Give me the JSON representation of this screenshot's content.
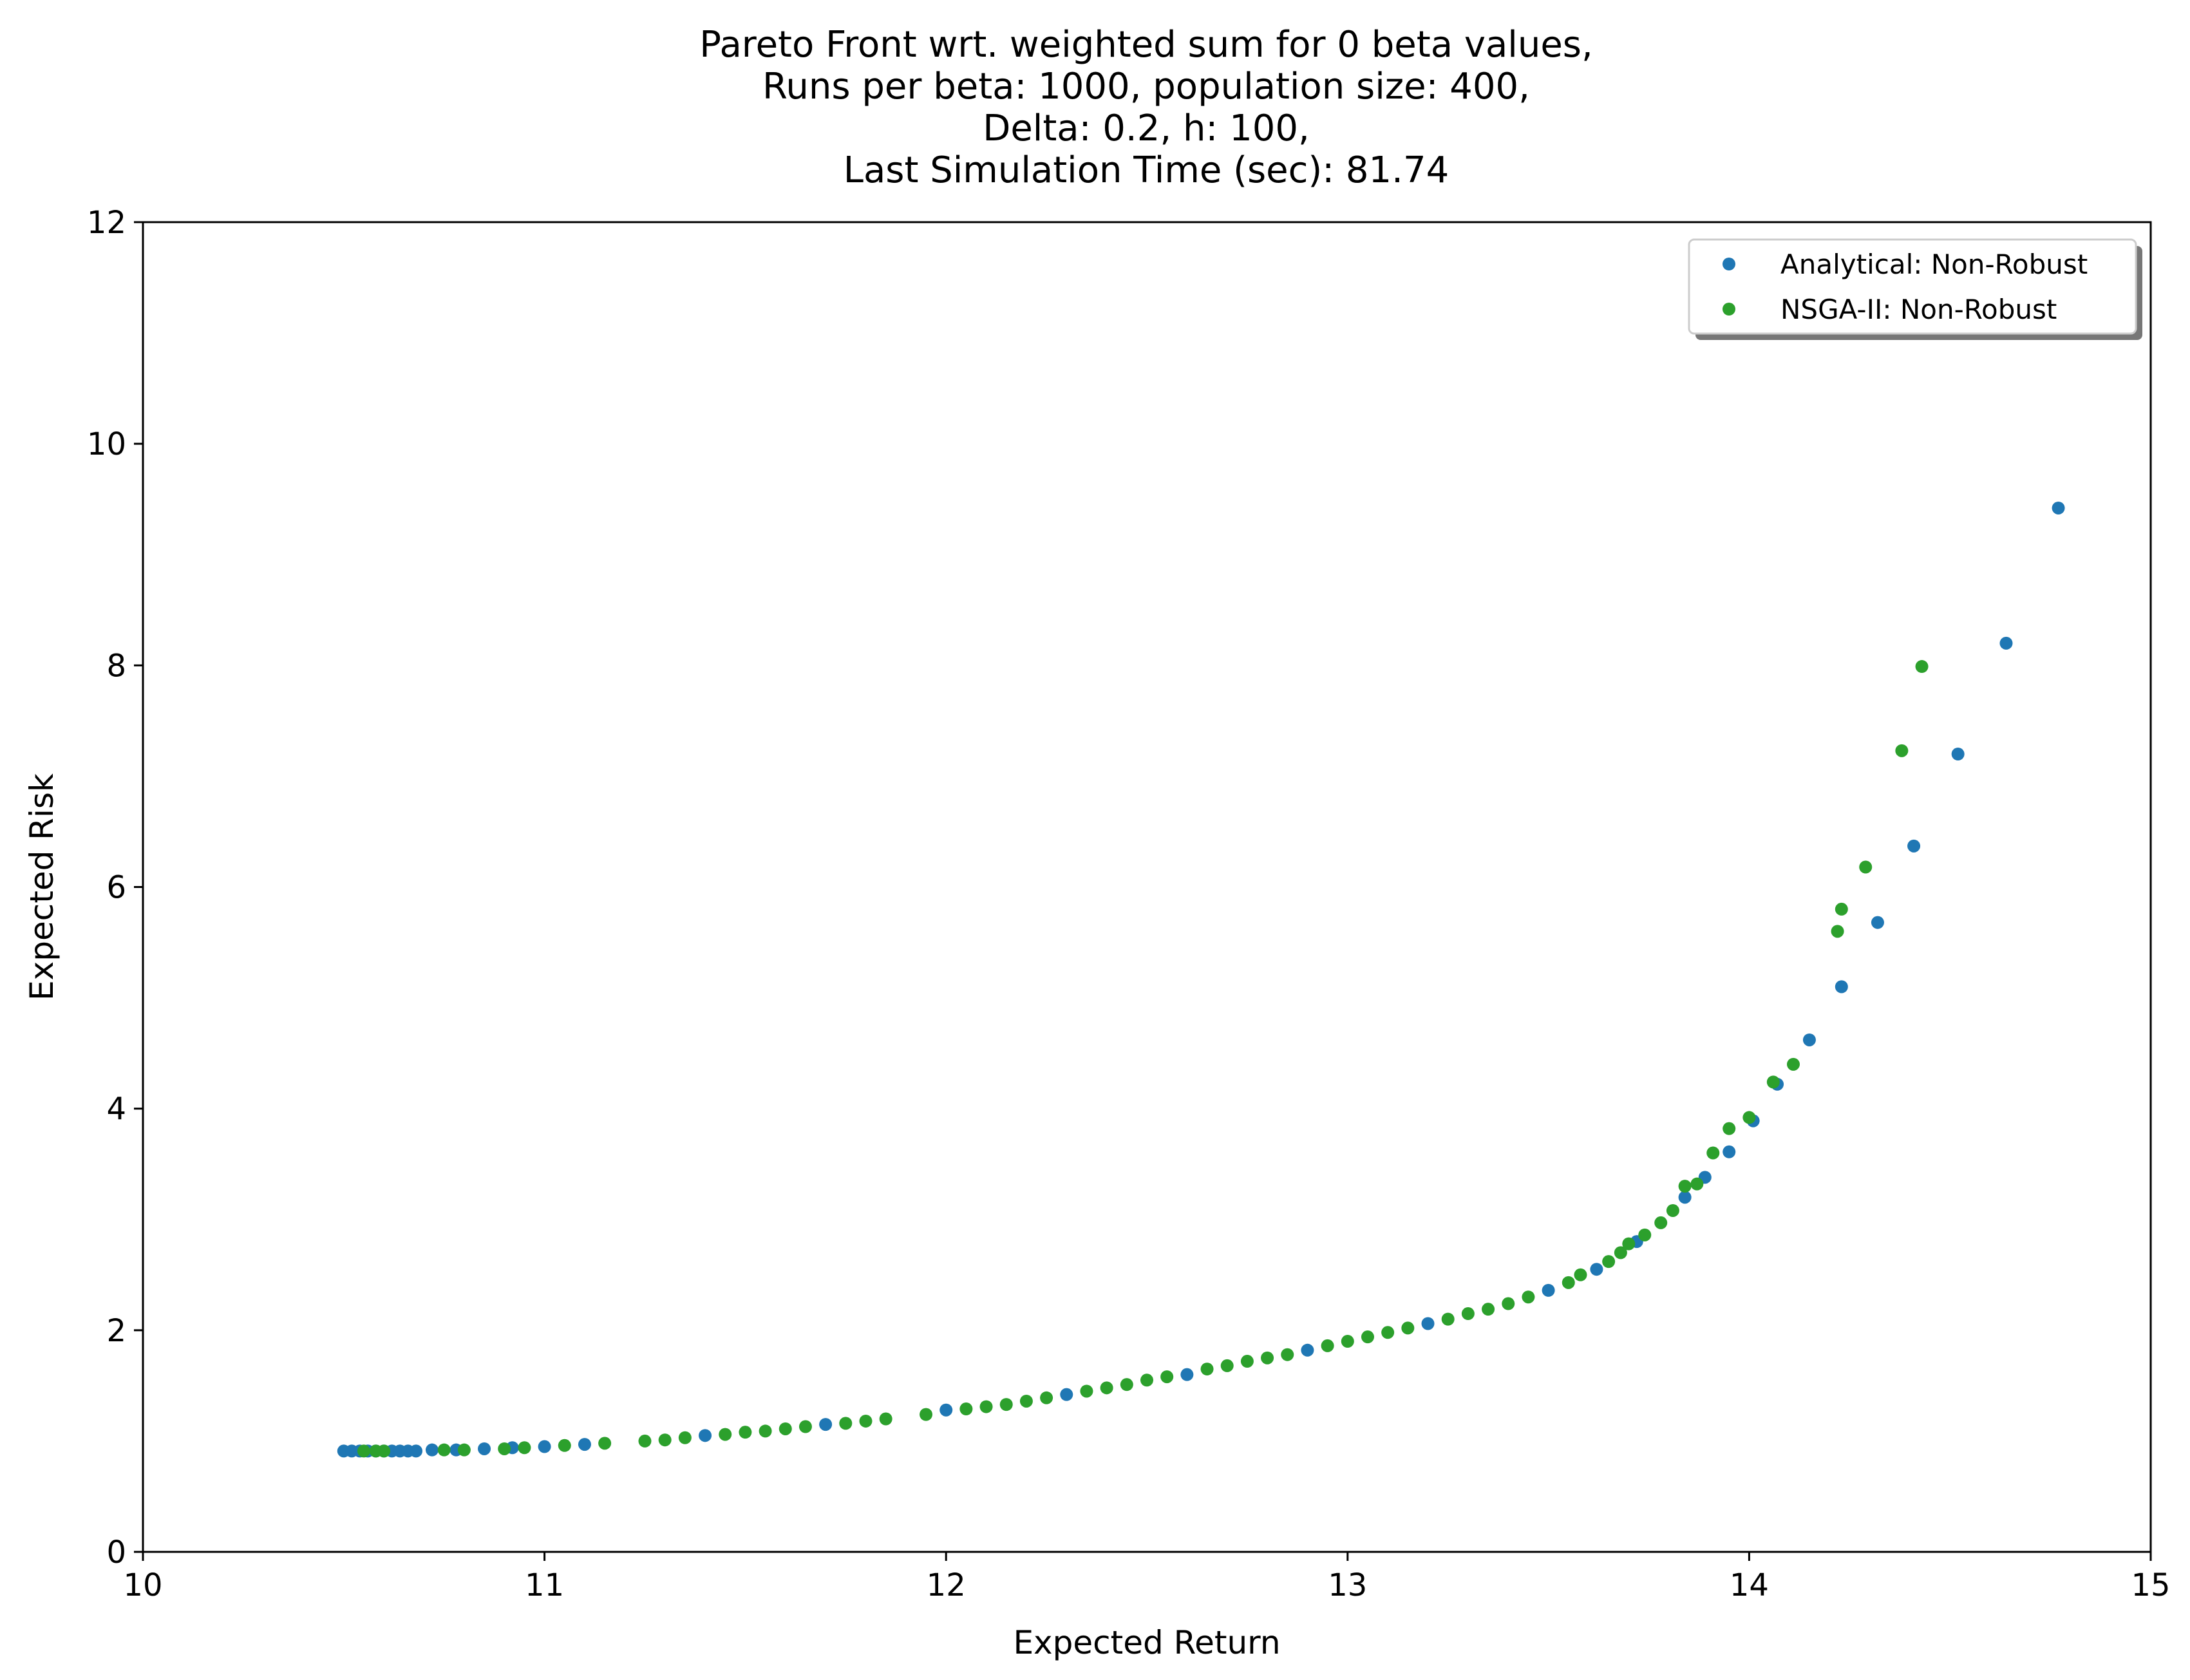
{
  "chart_data": {
    "type": "scatter",
    "title": [
      "Pareto Front wrt. weighted sum for 0 beta values,",
      "Runs per beta: 1000, population size: 400,",
      "Delta: 0.2, h: 100,",
      "Last Simulation Time (sec): 81.74"
    ],
    "xlabel": "Expected Return",
    "ylabel": "Expected Risk",
    "xlim": [
      10,
      15
    ],
    "ylim": [
      0,
      12
    ],
    "xticks": [
      10,
      11,
      12,
      13,
      14,
      15
    ],
    "yticks": [
      0,
      2,
      4,
      6,
      8,
      10,
      12
    ],
    "grid": false,
    "legend_position": "top-right",
    "series": [
      {
        "name": "Analytical: Non-Robust",
        "color": "#1f77b4",
        "points": [
          [
            10.5,
            0.91
          ],
          [
            10.52,
            0.91
          ],
          [
            10.54,
            0.91
          ],
          [
            10.56,
            0.91
          ],
          [
            10.58,
            0.91
          ],
          [
            10.6,
            0.91
          ],
          [
            10.62,
            0.91
          ],
          [
            10.64,
            0.91
          ],
          [
            10.66,
            0.91
          ],
          [
            10.68,
            0.91
          ],
          [
            10.72,
            0.92
          ],
          [
            10.78,
            0.92
          ],
          [
            10.85,
            0.93
          ],
          [
            10.92,
            0.94
          ],
          [
            11.0,
            0.95
          ],
          [
            11.1,
            0.97
          ],
          [
            11.4,
            1.05
          ],
          [
            11.7,
            1.15
          ],
          [
            12.0,
            1.28
          ],
          [
            12.3,
            1.42
          ],
          [
            12.6,
            1.6
          ],
          [
            12.9,
            1.82
          ],
          [
            13.2,
            2.06
          ],
          [
            13.5,
            2.36
          ],
          [
            13.62,
            2.55
          ],
          [
            13.72,
            2.8
          ],
          [
            13.84,
            3.2
          ],
          [
            13.89,
            3.38
          ],
          [
            13.95,
            3.61
          ],
          [
            14.01,
            3.89
          ],
          [
            14.07,
            4.22
          ],
          [
            14.15,
            4.62
          ],
          [
            14.23,
            5.1
          ],
          [
            14.32,
            5.68
          ],
          [
            14.41,
            6.37
          ],
          [
            14.52,
            7.2
          ],
          [
            14.64,
            8.2
          ],
          [
            14.77,
            9.42
          ]
        ]
      },
      {
        "name": "NSGA-II: Non-Robust",
        "color": "#2ca02c",
        "points": [
          [
            10.55,
            0.91
          ],
          [
            10.58,
            0.91
          ],
          [
            10.6,
            0.91
          ],
          [
            10.75,
            0.92
          ],
          [
            10.8,
            0.92
          ],
          [
            10.9,
            0.93
          ],
          [
            10.95,
            0.94
          ],
          [
            11.05,
            0.96
          ],
          [
            11.15,
            0.98
          ],
          [
            11.25,
            1.0
          ],
          [
            11.3,
            1.01
          ],
          [
            11.35,
            1.03
          ],
          [
            11.45,
            1.06
          ],
          [
            11.5,
            1.08
          ],
          [
            11.55,
            1.09
          ],
          [
            11.6,
            1.11
          ],
          [
            11.65,
            1.13
          ],
          [
            11.75,
            1.16
          ],
          [
            11.8,
            1.18
          ],
          [
            11.85,
            1.2
          ],
          [
            11.95,
            1.24
          ],
          [
            12.05,
            1.29
          ],
          [
            12.1,
            1.31
          ],
          [
            12.15,
            1.33
          ],
          [
            12.2,
            1.36
          ],
          [
            12.25,
            1.39
          ],
          [
            12.35,
            1.45
          ],
          [
            12.4,
            1.48
          ],
          [
            12.45,
            1.51
          ],
          [
            12.5,
            1.55
          ],
          [
            12.55,
            1.58
          ],
          [
            12.65,
            1.65
          ],
          [
            12.7,
            1.68
          ],
          [
            12.75,
            1.72
          ],
          [
            12.8,
            1.75
          ],
          [
            12.85,
            1.78
          ],
          [
            12.95,
            1.86
          ],
          [
            13.0,
            1.9
          ],
          [
            13.05,
            1.94
          ],
          [
            13.1,
            1.98
          ],
          [
            13.15,
            2.02
          ],
          [
            13.25,
            2.1
          ],
          [
            13.3,
            2.15
          ],
          [
            13.35,
            2.19
          ],
          [
            13.4,
            2.24
          ],
          [
            13.45,
            2.3
          ],
          [
            13.55,
            2.43
          ],
          [
            13.58,
            2.5
          ],
          [
            13.65,
            2.62
          ],
          [
            13.68,
            2.7
          ],
          [
            13.7,
            2.78
          ],
          [
            13.74,
            2.86
          ],
          [
            13.78,
            2.97
          ],
          [
            13.81,
            3.08
          ],
          [
            13.84,
            3.3
          ],
          [
            13.87,
            3.32
          ],
          [
            13.91,
            3.6
          ],
          [
            13.95,
            3.82
          ],
          [
            14.0,
            3.92
          ],
          [
            14.06,
            4.24
          ],
          [
            14.11,
            4.4
          ],
          [
            14.22,
            5.6
          ],
          [
            14.23,
            5.8
          ],
          [
            14.29,
            6.18
          ],
          [
            14.38,
            7.23
          ],
          [
            14.43,
            7.99
          ]
        ]
      }
    ]
  }
}
